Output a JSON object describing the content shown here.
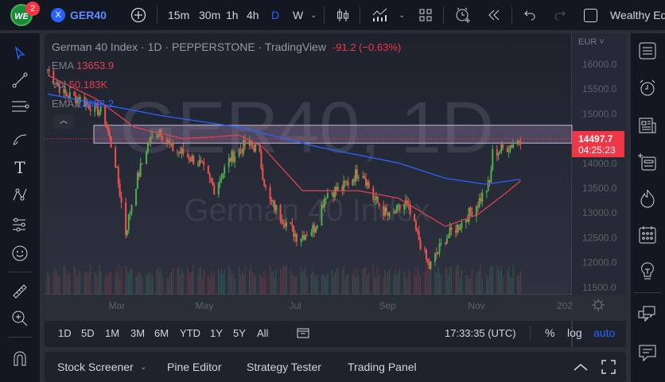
{
  "topbar": {
    "badge": "2",
    "symbol": "GER40",
    "intervals": [
      "15m",
      "30m",
      "1h",
      "4h",
      "D",
      "W"
    ],
    "active_interval": "D",
    "layout_name": "Wealthy Ed"
  },
  "legend": {
    "title": "German 40 Index · 1D · PEPPERSTONE · TradingView",
    "change": "-91.2 (−0.63%)",
    "ema1_label": "EMA",
    "ema1_value": "13653.9",
    "vol_label": "Vol",
    "vol_value": "50.183K",
    "ema2_label": "EMA",
    "ema2_value": "13688.2"
  },
  "watermark": {
    "symbol": "GER40, 1D",
    "name": "German 40 Index"
  },
  "price_axis": {
    "currency": "EUR",
    "ticks": [
      "16000.0",
      "15500.0",
      "15000.0",
      "14000.0",
      "13500.0",
      "13000.0",
      "12500.0",
      "12000.0",
      "11500.0"
    ],
    "last_price": "14497.7",
    "countdown": "04:25:23"
  },
  "time_axis": {
    "ticks": [
      "Mar",
      "May",
      "Jul",
      "Sep",
      "Nov",
      "202"
    ]
  },
  "timeframe_bar": {
    "ranges": [
      "1D",
      "5D",
      "1M",
      "3M",
      "6M",
      "YTD",
      "1Y",
      "5Y",
      "All"
    ],
    "clock": "17:33:35 (UTC)",
    "percent": "%",
    "log": "log",
    "auto": "auto"
  },
  "bottom_panel": {
    "tabs": [
      "Stock Screener",
      "Pine Editor",
      "Strategy Tester",
      "Trading Panel"
    ]
  },
  "colors": {
    "up": "#26a69a",
    "up_bright": "#4caf50",
    "down": "#ef5350",
    "ema_short": "#e04050",
    "ema_long": "#2962ff",
    "accent": "#2962ff",
    "price_tag": "#f23645",
    "zone": "#9c7fb0"
  },
  "chart_data": {
    "type": "candlestick",
    "ylim": [
      11500,
      16200
    ],
    "price_path": [
      [
        "2022-01-13",
        15900
      ],
      [
        "2022-01-24",
        15400
      ],
      [
        "2022-02-04",
        15300
      ],
      [
        "2022-02-20",
        15000
      ],
      [
        "2022-02-28",
        14000
      ],
      [
        "2022-03-07",
        12600
      ],
      [
        "2022-03-13",
        13500
      ],
      [
        "2022-03-22",
        14400
      ],
      [
        "2022-03-30",
        14700
      ],
      [
        "2022-04-07",
        14300
      ],
      [
        "2022-04-15",
        14200
      ],
      [
        "2022-04-26",
        14000
      ],
      [
        "2022-05-06",
        13500
      ],
      [
        "2022-05-17",
        14100
      ],
      [
        "2022-05-28",
        14400
      ],
      [
        "2022-06-05",
        14300
      ],
      [
        "2022-06-11",
        13300
      ],
      [
        "2022-06-19",
        13000
      ],
      [
        "2022-07-02",
        12500
      ],
      [
        "2022-07-13",
        12700
      ],
      [
        "2022-07-21",
        13400
      ],
      [
        "2022-08-01",
        13500
      ],
      [
        "2022-08-14",
        13900
      ],
      [
        "2022-08-22",
        13300
      ],
      [
        "2022-09-02",
        12900
      ],
      [
        "2022-09-13",
        13200
      ],
      [
        "2022-09-24",
        12300
      ],
      [
        "2022-09-29",
        11900
      ],
      [
        "2022-10-10",
        12500
      ],
      [
        "2022-10-21",
        12800
      ],
      [
        "2022-11-01",
        13200
      ],
      [
        "2022-11-09",
        13600
      ],
      [
        "2022-11-11",
        14200
      ],
      [
        "2022-11-22",
        14350
      ],
      [
        "2022-11-30",
        14500
      ]
    ],
    "ema_short": [
      [
        "2022-01-13",
        15780
      ],
      [
        "2022-02-15",
        15300
      ],
      [
        "2022-03-13",
        14730
      ],
      [
        "2022-04-15",
        14500
      ],
      [
        "2022-05-23",
        14570
      ],
      [
        "2022-06-08",
        14330
      ],
      [
        "2022-07-05",
        13450
      ],
      [
        "2022-08-12",
        13450
      ],
      [
        "2022-09-08",
        13300
      ],
      [
        "2022-10-10",
        12730
      ],
      [
        "2022-11-01",
        12970
      ],
      [
        "2022-11-22",
        13450
      ],
      [
        "2022-11-30",
        13650
      ]
    ],
    "ema_long": [
      [
        "2022-01-13",
        15400
      ],
      [
        "2022-03-30",
        14970
      ],
      [
        "2022-05-23",
        14730
      ],
      [
        "2022-07-16",
        14330
      ],
      [
        "2022-09-08",
        14010
      ],
      [
        "2022-10-10",
        13700
      ],
      [
        "2022-11-06",
        13580
      ],
      [
        "2022-11-30",
        13680
      ]
    ],
    "resistance_zone": [
      14410,
      14770
    ]
  }
}
